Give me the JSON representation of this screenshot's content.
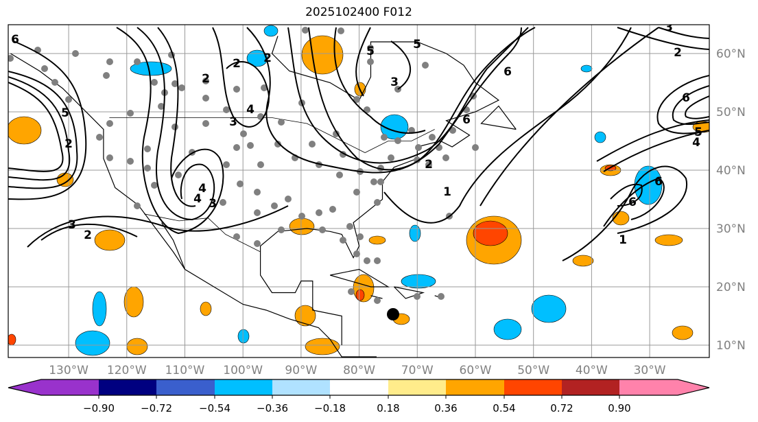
{
  "title": "2025102400 F012",
  "map": {
    "lon_labels": [
      "130°W",
      "120°W",
      "110°W",
      "100°W",
      "90°W",
      "80°W",
      "70°W",
      "60°W",
      "50°W",
      "40°W",
      "30°W"
    ],
    "lat_labels": [
      "60°N",
      "50°N",
      "40°N",
      "30°N",
      "20°N",
      "10°N"
    ],
    "contour_labels": [
      "6",
      "5",
      "2",
      "2",
      "3",
      "4",
      "3",
      "4",
      "2",
      "1",
      "2",
      "3",
      "5",
      "6",
      "6",
      "3",
      "2",
      "6",
      "4",
      "5",
      "1",
      "2",
      "5",
      "6",
      "6",
      "3",
      "4",
      "2"
    ]
  },
  "colorbar": {
    "ticks": [
      "−0.90",
      "−0.72",
      "−0.54",
      "−0.36",
      "−0.18",
      "0.18",
      "0.36",
      "0.54",
      "0.72",
      "0.90"
    ],
    "colors": [
      "#9932cc",
      "#000080",
      "#3a5fcd",
      "#00bfff",
      "#b0e2ff",
      "#ffffff",
      "#ffec8b",
      "#ffa500",
      "#ff4500",
      "#b22222",
      "#ff82ab"
    ]
  }
}
